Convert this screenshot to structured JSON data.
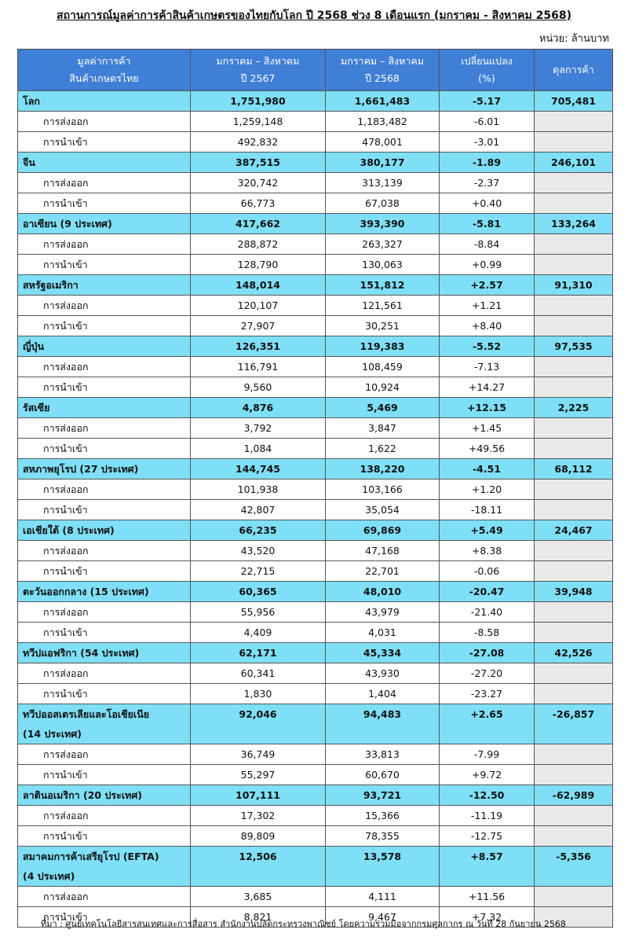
{
  "title": "สถานการณ์มูลค่าการค้าสินค้าเกษตรของไทยกับโลก ปี 2568 ช่วง 8 เดือนแรก (มกราคม - สิงหาคม 2568)",
  "unit": "หน่วย: ล้านบาท",
  "table": {
    "header": [
      [
        "มูลค่าการค้า",
        "สินค้าเกษตรไทย"
      ],
      [
        "มกราคม – สิงหาคม",
        "ปี 2567"
      ],
      [
        "มกราคม – สิงหาคม",
        "ปี 2568"
      ],
      [
        "เปลี่ยนแปลง",
        "(%)"
      ],
      [
        "ดุลการค้า"
      ]
    ],
    "groups": [
      {
        "name": [
          "โลก"
        ],
        "values": [
          "1,751,980",
          "1,661,483",
          "-5.17",
          "705,481"
        ],
        "rows": [
          [
            "การส่งออก",
            "1,259,148",
            "1,183,482",
            "-6.01"
          ],
          [
            "การนำเข้า",
            "492,832",
            "478,001",
            "-3.01"
          ]
        ]
      },
      {
        "name": [
          "จีน"
        ],
        "values": [
          "387,515",
          "380,177",
          "-1.89",
          "246,101"
        ],
        "rows": [
          [
            "การส่งออก",
            "320,742",
            "313,139",
            "-2.37"
          ],
          [
            "การนำเข้า",
            "66,773",
            "67,038",
            "+0.40"
          ]
        ]
      },
      {
        "name": [
          "อาเซียน (9 ประเทศ)"
        ],
        "values": [
          "417,662",
          "393,390",
          "-5.81",
          "133,264"
        ],
        "rows": [
          [
            "การส่งออก",
            "288,872",
            "263,327",
            "-8.84"
          ],
          [
            "การนำเข้า",
            "128,790",
            "130,063",
            "+0.99"
          ]
        ]
      },
      {
        "name": [
          "สหรัฐอเมริกา"
        ],
        "values": [
          "148,014",
          "151,812",
          "+2.57",
          "91,310"
        ],
        "rows": [
          [
            "การส่งออก",
            "120,107",
            "121,561",
            "+1.21"
          ],
          [
            "การนำเข้า",
            "27,907",
            "30,251",
            "+8.40"
          ]
        ]
      },
      {
        "name": [
          "ญี่ปุ่น"
        ],
        "values": [
          "126,351",
          "119,383",
          "-5.52",
          "97,535"
        ],
        "rows": [
          [
            "การส่งออก",
            "116,791",
            "108,459",
            "-7.13"
          ],
          [
            "การนำเข้า",
            "9,560",
            "10,924",
            "+14.27"
          ]
        ]
      },
      {
        "name": [
          "รัสเซีย"
        ],
        "values": [
          "4,876",
          "5,469",
          "+12.15",
          "2,225"
        ],
        "rows": [
          [
            "การส่งออก",
            "3,792",
            "3,847",
            "+1.45"
          ],
          [
            "การนำเข้า",
            "1,084",
            "1,622",
            "+49.56"
          ]
        ]
      },
      {
        "name": [
          "สหภาพยุโรป (27 ประเทศ)"
        ],
        "values": [
          "144,745",
          "138,220",
          "-4.51",
          "68,112"
        ],
        "rows": [
          [
            "การส่งออก",
            "101,938",
            "103,166",
            "+1.20"
          ],
          [
            "การนำเข้า",
            "42,807",
            "35,054",
            "-18.11"
          ]
        ]
      },
      {
        "name": [
          "เอเชียใต้ (8 ประเทศ)"
        ],
        "values": [
          "66,235",
          "69,869",
          "+5.49",
          "24,467"
        ],
        "rows": [
          [
            "การส่งออก",
            "43,520",
            "47,168",
            "+8.38"
          ],
          [
            "การนำเข้า",
            "22,715",
            "22,701",
            "-0.06"
          ]
        ]
      },
      {
        "name": [
          "ตะวันออกกลาง (15 ประเทศ)"
        ],
        "values": [
          "60,365",
          "48,010",
          "-20.47",
          "39,948"
        ],
        "rows": [
          [
            "การส่งออก",
            "55,956",
            "43,979",
            "-21.40"
          ],
          [
            "การนำเข้า",
            "4,409",
            "4,031",
            "-8.58"
          ]
        ]
      },
      {
        "name": [
          "ทวีปแอฟริกา (54 ประเทศ)"
        ],
        "values": [
          "62,171",
          "45,334",
          "-27.08",
          "42,526"
        ],
        "rows": [
          [
            "การส่งออก",
            "60,341",
            "43,930",
            "-27.20"
          ],
          [
            "การนำเข้า",
            "1,830",
            "1,404",
            "-23.27"
          ]
        ]
      },
      {
        "name": [
          "ทวีปออสเตรเลียและโอเชียเนีย",
          "(14 ประเทศ)"
        ],
        "values": [
          "92,046",
          "94,483",
          "+2.65",
          "-26,857"
        ],
        "rows": [
          [
            "การส่งออก",
            "36,749",
            "33,813",
            "-7.99"
          ],
          [
            "การนำเข้า",
            "55,297",
            "60,670",
            "+9.72"
          ]
        ]
      },
      {
        "name": [
          "ลาตินอเมริกา (20 ประเทศ)"
        ],
        "values": [
          "107,111",
          "93,721",
          "-12.50",
          "-62,989"
        ],
        "rows": [
          [
            "การส่งออก",
            "17,302",
            "15,366",
            "-11.19"
          ],
          [
            "การนำเข้า",
            "89,809",
            "78,355",
            "-12.75"
          ]
        ]
      },
      {
        "name": [
          "สมาคมการค้าเสรียุโรป (EFTA)",
          "(4 ประเทศ)"
        ],
        "values": [
          "12,506",
          "13,578",
          "+8.57",
          "-5,356"
        ],
        "rows": [
          [
            "การส่งออก",
            "3,685",
            "4,111",
            "+11.56"
          ],
          [
            "การนำเข้า",
            "8,821",
            "9,467",
            "+7.32"
          ]
        ]
      }
    ]
  },
  "source": "ที่มา : ศูนย์เทคโนโลยีสารสนเทศและการสื่อสาร สำนักงานปลัดกระทรวงพาณิชย์ โดยความร่วมมือจากกรมศุลกากร ณ วันที่ 28 กันยายน 2568"
}
